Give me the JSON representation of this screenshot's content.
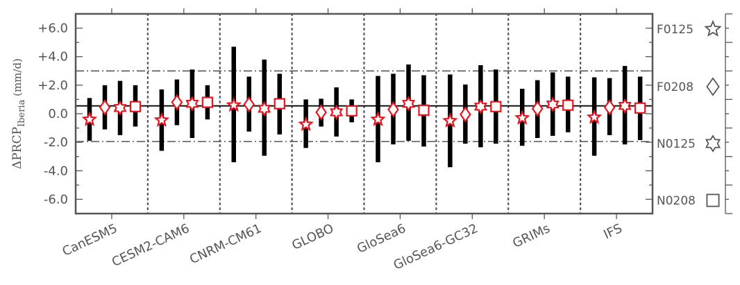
{
  "chart_data": {
    "type": "scatter",
    "ylabel": "ΔPRCP",
    "ylabel_sub": "Iberia",
    "ylabel_unit": "(mm/d)",
    "ylim": [
      -7.0,
      7.0
    ],
    "yticks": [
      {
        "value": 6,
        "label": "+6.0"
      },
      {
        "value": 4,
        "label": "+4.0"
      },
      {
        "value": 2,
        "label": "+2.0"
      },
      {
        "value": 0,
        "label": "0.0"
      },
      {
        "value": -2,
        "label": "-2.0"
      },
      {
        "value": -4,
        "label": "-4.0"
      },
      {
        "value": -6,
        "label": "-6.0"
      }
    ],
    "reference_lines": {
      "solid": 0.55,
      "dashdot": [
        3.0,
        -1.95
      ]
    },
    "legend": [
      {
        "label": "F0125",
        "marker": "star"
      },
      {
        "label": "F0208",
        "marker": "diamond"
      },
      {
        "label": "N0125",
        "marker": "hexagram"
      },
      {
        "label": "N0208",
        "marker": "square"
      }
    ],
    "models": [
      {
        "name": "CanESM5",
        "entries": [
          {
            "marker": "star",
            "value": -0.4,
            "low": -1.9,
            "high": 1.1
          },
          {
            "marker": "diamond",
            "value": 0.45,
            "low": -1.1,
            "high": 2.0
          },
          {
            "marker": "hexagram",
            "value": 0.4,
            "low": -1.5,
            "high": 2.3
          },
          {
            "marker": "square",
            "value": 0.5,
            "low": -0.9,
            "high": 2.0
          }
        ]
      },
      {
        "name": "CESM2-CAM6",
        "entries": [
          {
            "marker": "star",
            "value": -0.45,
            "low": -2.6,
            "high": 1.7
          },
          {
            "marker": "diamond",
            "value": 0.8,
            "low": -0.8,
            "high": 2.4
          },
          {
            "marker": "hexagram",
            "value": 0.7,
            "low": -1.7,
            "high": 3.1
          },
          {
            "marker": "square",
            "value": 0.8,
            "low": -0.4,
            "high": 2.0
          }
        ]
      },
      {
        "name": "CNRM-CM61",
        "entries": [
          {
            "marker": "star",
            "value": 0.6,
            "low": -3.4,
            "high": 4.7
          },
          {
            "marker": "diamond",
            "value": 0.65,
            "low": -1.25,
            "high": 2.6
          },
          {
            "marker": "hexagram",
            "value": 0.35,
            "low": -2.95,
            "high": 3.8
          },
          {
            "marker": "square",
            "value": 0.7,
            "low": -1.45,
            "high": 2.8
          }
        ]
      },
      {
        "name": "GLOBO",
        "entries": [
          {
            "marker": "star",
            "value": -0.75,
            "low": -2.4,
            "high": 1.0
          },
          {
            "marker": "diamond",
            "value": 0.1,
            "low": -0.9,
            "high": 1.05
          },
          {
            "marker": "hexagram",
            "value": 0.1,
            "low": -1.6,
            "high": 1.85
          },
          {
            "marker": "square",
            "value": 0.2,
            "low": -0.6,
            "high": 1.0
          }
        ]
      },
      {
        "name": "GloSea6",
        "entries": [
          {
            "marker": "star",
            "value": -0.4,
            "low": -3.4,
            "high": 2.65
          },
          {
            "marker": "diamond",
            "value": 0.3,
            "low": -2.15,
            "high": 2.8
          },
          {
            "marker": "hexagram",
            "value": 0.7,
            "low": -1.9,
            "high": 3.45
          },
          {
            "marker": "square",
            "value": 0.25,
            "low": -2.3,
            "high": 2.7
          }
        ]
      },
      {
        "name": "GloSea6-GC32",
        "entries": [
          {
            "marker": "star",
            "value": -0.5,
            "low": -3.75,
            "high": 2.75
          },
          {
            "marker": "diamond",
            "value": -0.05,
            "low": -2.1,
            "high": 2.05
          },
          {
            "marker": "hexagram",
            "value": 0.5,
            "low": -2.35,
            "high": 3.4
          },
          {
            "marker": "square",
            "value": 0.5,
            "low": -2.1,
            "high": 3.1
          }
        ]
      },
      {
        "name": "GRIMs",
        "entries": [
          {
            "marker": "star",
            "value": -0.3,
            "low": -2.25,
            "high": 1.75
          },
          {
            "marker": "diamond",
            "value": 0.35,
            "low": -1.7,
            "high": 2.35
          },
          {
            "marker": "hexagram",
            "value": 0.65,
            "low": -1.55,
            "high": 2.9
          },
          {
            "marker": "square",
            "value": 0.6,
            "low": -1.3,
            "high": 2.6
          }
        ]
      },
      {
        "name": "IFS",
        "entries": [
          {
            "marker": "star",
            "value": -0.25,
            "low": -2.95,
            "high": 2.55
          },
          {
            "marker": "diamond",
            "value": 0.45,
            "low": -1.5,
            "high": 2.5
          },
          {
            "marker": "hexagram",
            "value": 0.55,
            "low": -2.15,
            "high": 3.35
          },
          {
            "marker": "square",
            "value": 0.4,
            "low": -1.85,
            "high": 2.6
          }
        ]
      }
    ],
    "colors": {
      "marker_edge": "#e8141e",
      "marker_fill": "#ffffff",
      "bar": "#000000",
      "axis": "#555555",
      "legend_marker": "#555555"
    }
  }
}
